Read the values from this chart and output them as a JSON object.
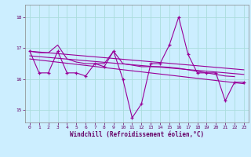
{
  "xlabel": "Windchill (Refroidissement éolien,°C)",
  "background_color": "#cceeff",
  "grid_color": "#aadddd",
  "line_color": "#990099",
  "ylim": [
    14.6,
    18.4
  ],
  "xlim": [
    -0.5,
    23.5
  ],
  "yticks": [
    15,
    16,
    17,
    18
  ],
  "xticks": [
    0,
    1,
    2,
    3,
    4,
    5,
    6,
    7,
    8,
    9,
    10,
    11,
    12,
    13,
    14,
    15,
    16,
    17,
    18,
    19,
    20,
    21,
    22,
    23
  ],
  "series_main": [
    16.9,
    16.2,
    16.2,
    16.9,
    16.2,
    16.2,
    16.1,
    16.5,
    16.4,
    16.9,
    16.0,
    14.75,
    15.2,
    16.5,
    16.5,
    17.1,
    18.0,
    16.8,
    16.2,
    16.2,
    16.2,
    15.3,
    15.9,
    15.9
  ],
  "series_upper": [
    16.9,
    16.85,
    16.85,
    17.1,
    16.65,
    16.55,
    16.5,
    16.5,
    16.5,
    16.9,
    16.5,
    16.45,
    16.4,
    16.4,
    16.4,
    16.38,
    16.35,
    16.3,
    16.25,
    16.2,
    16.15,
    16.1,
    16.08,
    null
  ],
  "trend1_x": [
    0,
    23
  ],
  "trend1_y": [
    16.9,
    16.3
  ],
  "trend2_x": [
    0,
    23
  ],
  "trend2_y": [
    16.75,
    16.15
  ],
  "trend3_x": [
    0,
    23
  ],
  "trend3_y": [
    16.65,
    15.85
  ]
}
